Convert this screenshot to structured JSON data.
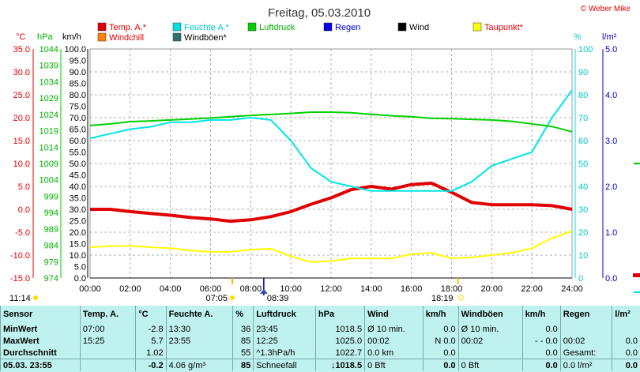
{
  "header": {
    "title": "Freitag, 05.03.2010",
    "copyright": "© Weber Mike"
  },
  "legend": [
    {
      "label": "Temp. A.*",
      "color": "#e00000",
      "text_color": "#e00000"
    },
    {
      "label": "Feuchte A.*",
      "color": "#00e0e0",
      "text_color": "#00c8c8"
    },
    {
      "label": "Luftdruck",
      "color": "#00d000",
      "text_color": "#00b000"
    },
    {
      "label": "Regen",
      "color": "#0000e0",
      "text_color": "#0000e0"
    },
    {
      "label": "Wind",
      "color": "#000000",
      "text_color": "#000000"
    },
    {
      "label": "Taupunkt*",
      "color": "#ffff00",
      "text_color": "#e00000"
    },
    {
      "label": "Windchill",
      "color": "#ff8000",
      "text_color": "#e00000"
    },
    {
      "label": "Windböen*",
      "color": "#2f6f6f",
      "text_color": "#000000"
    }
  ],
  "axis_units": {
    "temp": "°C",
    "pressure": "hPa",
    "wind": "km/h",
    "humidity": "%",
    "rain": "l/m²"
  },
  "chart_data": {
    "type": "line",
    "x_ticks": [
      "00:00",
      "02:00",
      "04:00",
      "06:00",
      "08:00",
      "10:00",
      "12:00",
      "14:00",
      "16:00",
      "18:00",
      "20:00",
      "22:00",
      "24:00"
    ],
    "temp_ticks": [
      "35.0",
      "30.0",
      "25.0",
      "20.0",
      "15.0",
      "10.0",
      "5.0",
      "0.0",
      "-5.0",
      "-10.0",
      "-15.0"
    ],
    "pressure_ticks": [
      "1044",
      "1039",
      "1034",
      "1029",
      "1024",
      "1019",
      "1014",
      "1009",
      "1004",
      "999",
      "994",
      "989",
      "984",
      "979",
      "974"
    ],
    "wind_ticks": [
      "100.0",
      "95.0",
      "90.0",
      "85.0",
      "80.0",
      "75.0",
      "70.0",
      "65.0",
      "60.0",
      "55.0",
      "50.0",
      "45.0",
      "40.0",
      "35.0",
      "30.0",
      "25.0",
      "20.0",
      "15.0",
      "10.0",
      "5.0",
      "0.0"
    ],
    "humidity_ticks": [
      "100",
      "90",
      "80",
      "70",
      "60",
      "50",
      "40",
      "30",
      "20",
      "10",
      "0"
    ],
    "rain_ticks": [
      "5.0",
      "4.0",
      "3.0",
      "2.0",
      "1.0",
      "0.0"
    ],
    "ylim_temp": [
      -15,
      35
    ],
    "ylim_humidity": [
      0,
      100
    ],
    "series": [
      {
        "name": "Temp. A.*",
        "color": "#e00000",
        "scale": "temp",
        "width": 4,
        "x": [
          0,
          1,
          2,
          3,
          4,
          5,
          6,
          7,
          8,
          9,
          10,
          11,
          12,
          13,
          14,
          15,
          16,
          17,
          18,
          19,
          20,
          21,
          22,
          23,
          24
        ],
        "values": [
          0.0,
          0.0,
          -0.5,
          -0.9,
          -1.3,
          -1.8,
          -2.1,
          -2.6,
          -2.3,
          -1.6,
          -0.5,
          1.1,
          2.5,
          4.3,
          5.0,
          4.4,
          5.4,
          5.7,
          3.7,
          1.5,
          1.0,
          1.0,
          1.0,
          0.8,
          0.0
        ]
      },
      {
        "name": "Feuchte A.*",
        "color": "#00e5e5",
        "scale": "humidity",
        "width": 2,
        "x": [
          0,
          1,
          2,
          3,
          4,
          5,
          6,
          7,
          8,
          9,
          10,
          11,
          12,
          13,
          14,
          15,
          16,
          17,
          18,
          19,
          20,
          21,
          22,
          23,
          24
        ],
        "values": [
          61,
          63,
          65,
          66,
          68,
          68,
          69,
          69,
          70,
          69,
          60,
          48,
          42,
          40,
          38,
          38,
          38,
          38,
          38,
          42,
          49,
          52,
          55,
          70,
          82
        ]
      },
      {
        "name": "Luftdruck",
        "color": "#00d000",
        "scale": "pressure",
        "width": 2,
        "x": [
          0,
          1,
          2,
          3,
          4,
          5,
          6,
          7,
          8,
          9,
          10,
          11,
          12,
          13,
          14,
          15,
          16,
          17,
          18,
          19,
          20,
          21,
          22,
          23,
          24
        ],
        "values": [
          1020.6,
          1021.1,
          1021.8,
          1022.0,
          1022.3,
          1022.6,
          1022.9,
          1023.3,
          1023.7,
          1024.0,
          1024.3,
          1024.7,
          1024.7,
          1024.5,
          1024.0,
          1023.6,
          1023.3,
          1022.8,
          1022.7,
          1022.5,
          1022.3,
          1021.9,
          1021.1,
          1020.3,
          1018.7
        ]
      },
      {
        "name": "Taupunkt*",
        "color": "#ffff00",
        "scale": "temp",
        "width": 2,
        "x": [
          0,
          1,
          2,
          3,
          4,
          5,
          6,
          7,
          8,
          9,
          10,
          11,
          12,
          13,
          14,
          15,
          16,
          17,
          18,
          19,
          20,
          21,
          22,
          23,
          24
        ],
        "values": [
          -8.3,
          -8.0,
          -8.0,
          -8.3,
          -8.5,
          -9.0,
          -9.3,
          -9.3,
          -8.8,
          -8.6,
          -10.3,
          -11.5,
          -11.3,
          -10.7,
          -10.7,
          -10.7,
          -9.8,
          -9.5,
          -10.7,
          -10.5,
          -10.0,
          -9.5,
          -8.5,
          -6.3,
          -4.7
        ]
      }
    ],
    "markers": {
      "sunrise": "07:05",
      "sunset": "18:19",
      "noon": "08:39",
      "current": "11:14"
    }
  },
  "table": {
    "headers": [
      "Sensor",
      "Temp. A.",
      "°C",
      "Feuchte A.",
      "%",
      "Luftdruck",
      "hPa",
      "Wind",
      "km/h",
      "Windböen",
      "km/h",
      "Regen",
      "l/m²"
    ],
    "rows": [
      [
        "MinWert",
        "07:00",
        "-2.8",
        "13:30",
        "36",
        "23:45",
        "1018.5",
        "Ø 10 min.",
        "0.0",
        "Ø 10 min.",
        "0.0",
        "",
        ""
      ],
      [
        "MaxWert",
        "15:25",
        "5.7",
        "23:55",
        "85",
        "12:25",
        "1025.0",
        "00:02",
        "N 0.0",
        "00:02",
        "- - 0.0",
        "00:02",
        "0.0"
      ],
      [
        "Durchschnitt",
        "",
        "1.02",
        "",
        "55",
        "^1.3hPa/h",
        "1022.7",
        "0.0 km",
        "0.0",
        "",
        "0.0",
        "Gesamt:",
        "0.0"
      ],
      [
        "05.03. 23:55",
        "",
        "-0.2",
        "4.06 g/m³",
        "85",
        "Schneefall",
        "↓1018.5",
        "0 Bft",
        "0.0",
        "0 Bft",
        "0.0",
        "0.0 l/m²",
        "0.0"
      ]
    ]
  }
}
